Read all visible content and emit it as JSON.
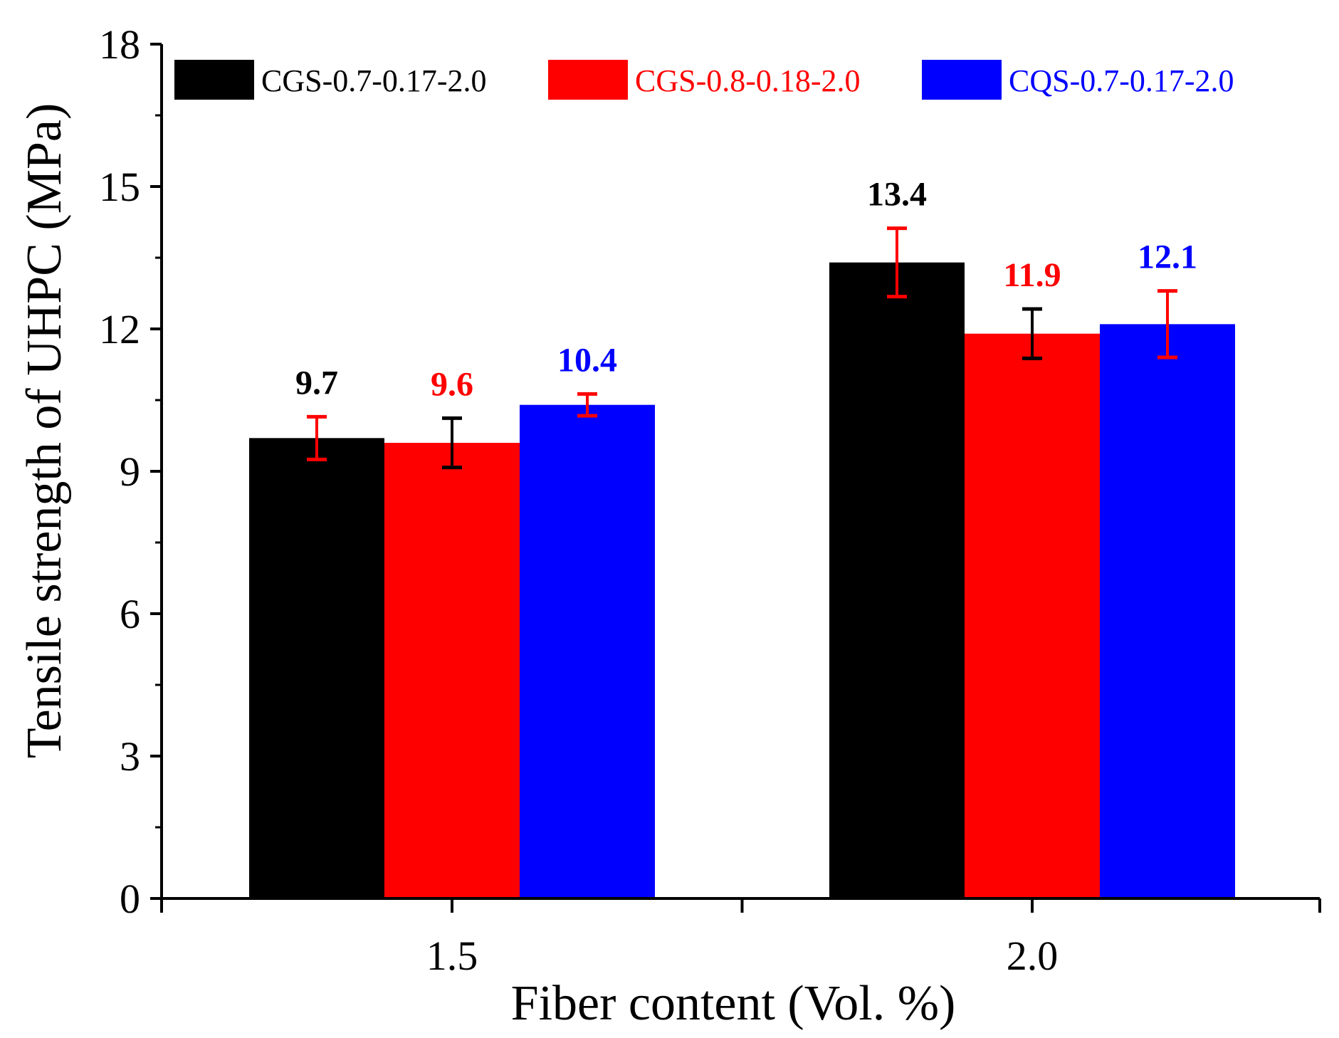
{
  "chart_data": {
    "type": "bar",
    "xlabel": "Fiber content (Vol. %)",
    "ylabel": "Tensile strength of UHPC (MPa)",
    "ylim": [
      0,
      18
    ],
    "yticks": [
      0,
      3,
      6,
      9,
      12,
      15,
      18
    ],
    "categories": [
      "1.5",
      "2.0"
    ],
    "legend_position": "top",
    "series": [
      {
        "name": "CGS-0.7-0.17-2.0",
        "color": "#000000",
        "values": [
          9.7,
          13.4
        ],
        "value_labels": [
          "9.7",
          "13.4"
        ],
        "error": [
          0.45,
          0.72
        ],
        "error_color": "#ff0000"
      },
      {
        "name": "CGS-0.8-0.18-2.0",
        "color": "#ff0000",
        "values": [
          9.6,
          11.9
        ],
        "value_labels": [
          "9.6",
          "11.9"
        ],
        "error": [
          0.52,
          0.52
        ],
        "error_color": "#000000"
      },
      {
        "name": "CQS-0.7-0.17-2.0",
        "color": "#0000ff",
        "values": [
          10.4,
          12.1
        ],
        "value_labels": [
          "10.4",
          "12.1"
        ],
        "error": [
          0.23,
          0.7
        ],
        "error_color": "#ff0000"
      }
    ]
  }
}
